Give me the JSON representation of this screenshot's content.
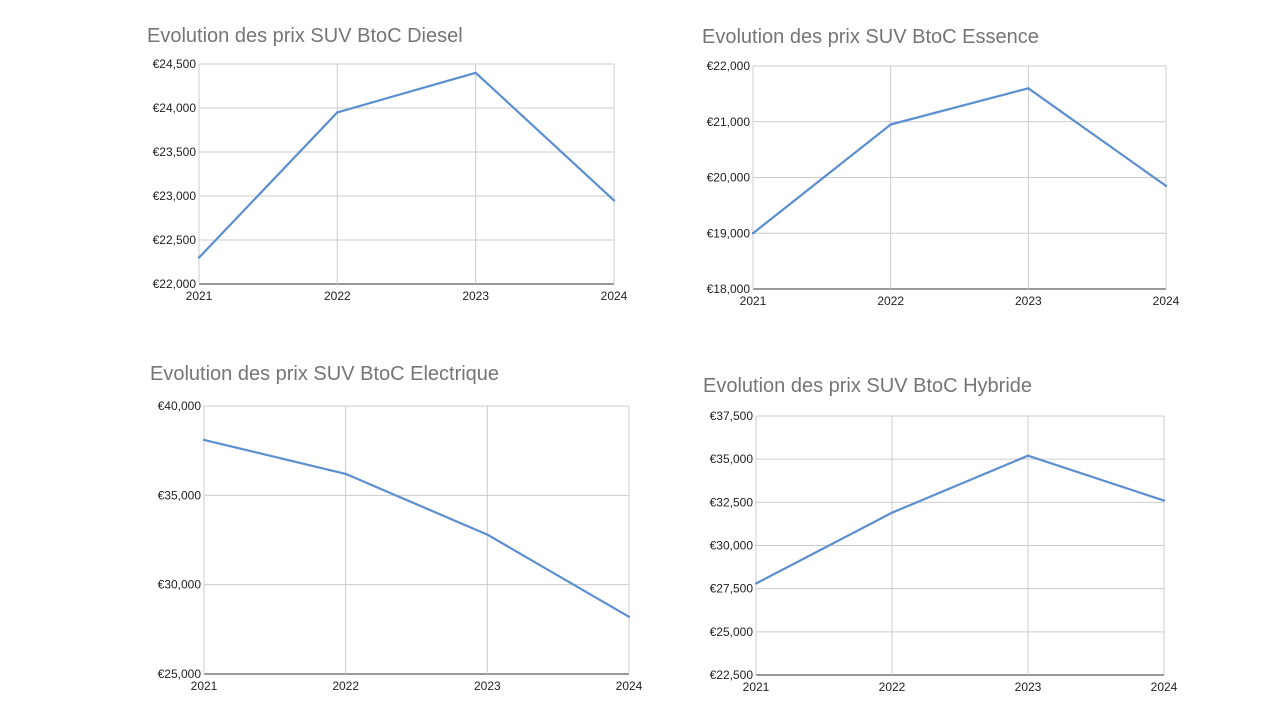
{
  "chart_data": [
    {
      "type": "line",
      "title": "Evolution des prix SUV BtoC Diesel",
      "x": [
        "2021",
        "2022",
        "2023",
        "2024"
      ],
      "series": [
        {
          "values": [
            22300,
            23950,
            24400,
            22950
          ]
        }
      ],
      "ylim": [
        22000,
        24500
      ],
      "yticks": [
        "€22,000",
        "€22,500",
        "€23,000",
        "€23,500",
        "€24,000",
        "€24,500"
      ],
      "grid": true,
      "line_color": "#5b8fd1"
    },
    {
      "type": "line",
      "title": "Evolution des prix SUV BtoC Essence",
      "x": [
        "2021",
        "2022",
        "2023",
        "2024"
      ],
      "series": [
        {
          "values": [
            19000,
            20950,
            21600,
            19850
          ]
        }
      ],
      "ylim": [
        18000,
        22000
      ],
      "yticks": [
        "€18,000",
        "€19,000",
        "€20,000",
        "€21,000",
        "€22,000"
      ],
      "grid": true,
      "line_color": "#5b8fd1"
    },
    {
      "type": "line",
      "title": "Evolution des prix SUV BtoC Electrique",
      "x": [
        "2021",
        "2022",
        "2023",
        "2024"
      ],
      "series": [
        {
          "values": [
            38100,
            36200,
            32800,
            28200
          ]
        }
      ],
      "ylim": [
        25000,
        40000
      ],
      "yticks": [
        "€25,000",
        "€30,000",
        "€35,000",
        "€40,000"
      ],
      "grid": true,
      "line_color": "#5b8fd1"
    },
    {
      "type": "line",
      "title": "Evolution des prix SUV BtoC Hybride",
      "x": [
        "2021",
        "2022",
        "2023",
        "2024"
      ],
      "series": [
        {
          "values": [
            27800,
            31900,
            35200,
            32600
          ]
        }
      ],
      "ylim": [
        22500,
        37500
      ],
      "yticks": [
        "€22,500",
        "€25,000",
        "€27,500",
        "€30,000",
        "€32,500",
        "€35,000",
        "€37,500"
      ],
      "grid": true,
      "line_color": "#5b8fd1"
    }
  ]
}
